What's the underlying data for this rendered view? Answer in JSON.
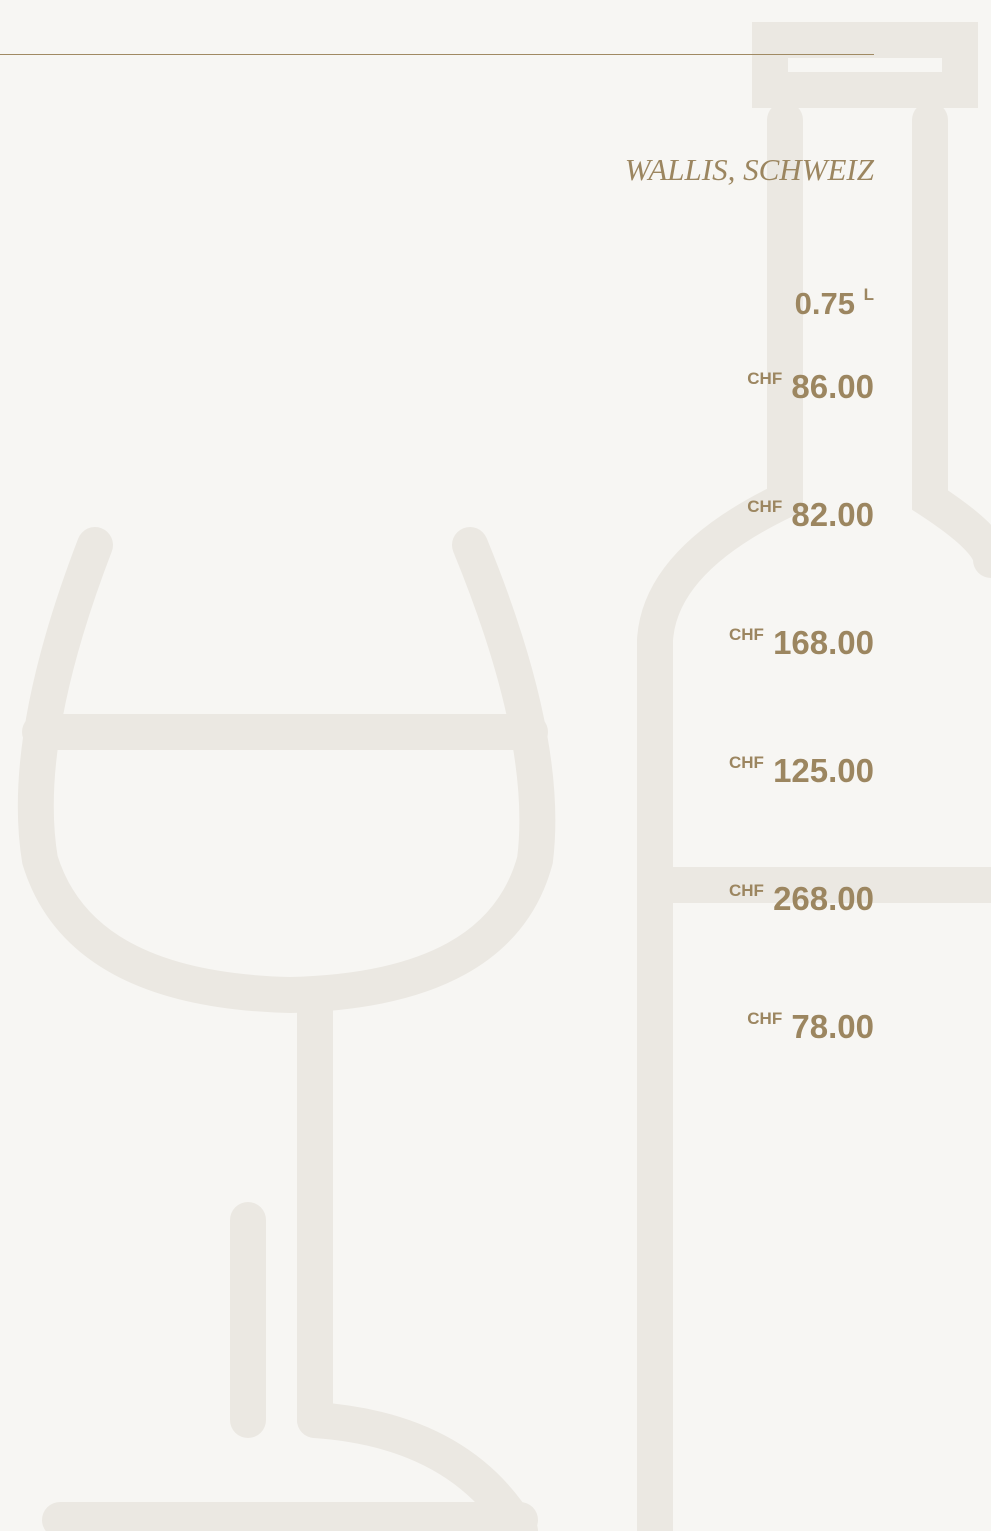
{
  "region": "WALLIS, SCHWEIZ",
  "volume": {
    "amount": "0.75",
    "unit": "L"
  },
  "prices": [
    {
      "currency": "CHF",
      "amount": "86.00"
    },
    {
      "currency": "CHF",
      "amount": "82.00"
    },
    {
      "currency": "CHF",
      "amount": "168.00"
    },
    {
      "currency": "CHF",
      "amount": "125.00"
    },
    {
      "currency": "CHF",
      "amount": "268.00"
    },
    {
      "currency": "CHF",
      "amount": "78.00"
    }
  ]
}
